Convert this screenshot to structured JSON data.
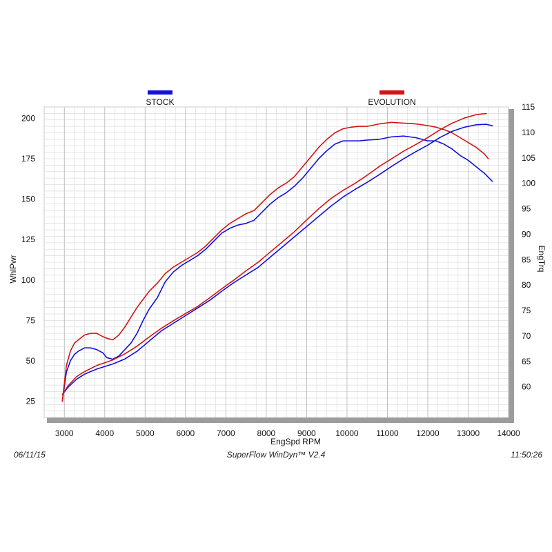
{
  "footer": {
    "date": "06/11/15",
    "software": "SuperFlow WinDyn™ V2.4",
    "time": "11:50:26"
  },
  "chart_data": {
    "type": "line",
    "xlabel": "EngSpd  RPM",
    "ylabel": "WhlPwr",
    "y2label": "EngTrq",
    "xlim": [
      2500,
      14000
    ],
    "ylim": [
      15,
      207
    ],
    "y2lim": [
      54,
      115
    ],
    "x_ticks": [
      3000,
      4000,
      5000,
      6000,
      7000,
      8000,
      9000,
      10000,
      11000,
      12000,
      13000,
      14000
    ],
    "y_ticks": [
      25,
      50,
      75,
      100,
      125,
      150,
      175,
      200
    ],
    "y2_ticks": [
      60,
      65,
      70,
      75,
      80,
      85,
      90,
      95,
      100,
      105,
      110,
      115
    ],
    "grid": true,
    "legend_position": "top",
    "colors": {
      "stock": "#1010dd",
      "evolution": "#d41414"
    },
    "series": [
      {
        "name": "STOCK",
        "key": "stock",
        "measure": "power",
        "axis": "left",
        "x": [
          2950,
          3050,
          3150,
          3250,
          3350,
          3500,
          3650,
          3800,
          3950,
          4050,
          4200,
          4350,
          4500,
          4650,
          4800,
          4950,
          5100,
          5300,
          5500,
          5700,
          5900,
          6100,
          6300,
          6500,
          6700,
          6900,
          7100,
          7300,
          7500,
          7700,
          7900,
          8100,
          8300,
          8500,
          8700,
          8900,
          9100,
          9300,
          9500,
          9700,
          9900,
          10100,
          10300,
          10500,
          10800,
          11100,
          11400,
          11700,
          12000,
          12200,
          12400,
          12600,
          12800,
          13000,
          13200,
          13400,
          13600
        ],
        "y": [
          25,
          43,
          50,
          54,
          56,
          58,
          58,
          57,
          55,
          52,
          51,
          53,
          57,
          61,
          67,
          75,
          82,
          89,
          99,
          105,
          109,
          112,
          115,
          119,
          124,
          129,
          132,
          134,
          135,
          137,
          142,
          147,
          151,
          154,
          158,
          163,
          169,
          175,
          180,
          184,
          186,
          186,
          186,
          186.5,
          187,
          188.5,
          189,
          188,
          186,
          186,
          184,
          181,
          177,
          174,
          170,
          166,
          161
        ]
      },
      {
        "name": "EVOLUTION",
        "key": "evolution",
        "measure": "power",
        "axis": "left",
        "x": [
          2950,
          3050,
          3150,
          3250,
          3350,
          3500,
          3650,
          3800,
          3950,
          4050,
          4200,
          4350,
          4500,
          4650,
          4800,
          4950,
          5100,
          5300,
          5500,
          5700,
          5900,
          6100,
          6300,
          6500,
          6700,
          6900,
          7100,
          7300,
          7500,
          7700,
          7900,
          8100,
          8300,
          8500,
          8700,
          8900,
          9100,
          9300,
          9500,
          9700,
          9900,
          10100,
          10300,
          10500,
          10800,
          11100,
          11400,
          11700,
          12000,
          12200,
          12400,
          12600,
          12800,
          13000,
          13200,
          13400,
          13500
        ],
        "y": [
          25,
          47,
          56,
          61,
          63,
          66,
          67,
          67,
          65,
          64,
          63,
          66,
          71,
          77,
          83,
          88,
          93,
          98,
          104,
          108,
          111,
          114,
          117,
          121,
          126,
          131,
          135,
          138,
          141,
          143,
          148,
          153,
          157,
          160,
          164,
          170,
          176,
          182,
          187,
          191,
          193.5,
          194.5,
          195,
          195,
          196.5,
          197.5,
          197,
          196.5,
          195.5,
          194.5,
          193,
          191,
          188,
          185,
          182,
          178,
          175
        ]
      },
      {
        "name": "STOCK",
        "key": "stock",
        "measure": "torque",
        "axis": "right",
        "x": [
          2950,
          3100,
          3300,
          3500,
          3800,
          4200,
          4500,
          4800,
          5100,
          5400,
          5700,
          6000,
          6300,
          6600,
          6900,
          7200,
          7500,
          7800,
          8100,
          8400,
          8700,
          9000,
          9300,
          9600,
          9900,
          10200,
          10500,
          10800,
          11100,
          11400,
          11700,
          12000,
          12300,
          12600,
          12900,
          13200,
          13450,
          13600
        ],
        "y": [
          58.5,
          60,
          61.5,
          62.5,
          63.5,
          64.5,
          65.5,
          67,
          69,
          71,
          72.5,
          74,
          75.5,
          77,
          78.8,
          80.5,
          82,
          83.5,
          85.5,
          87.5,
          89.5,
          91.5,
          93.5,
          95.5,
          97.3,
          98.8,
          100.2,
          101.7,
          103.3,
          104.8,
          106.2,
          107.5,
          109,
          110.2,
          111,
          111.5,
          111.6,
          111.3
        ]
      },
      {
        "name": "EVOLUTION",
        "key": "evolution",
        "measure": "torque",
        "axis": "right",
        "x": [
          2950,
          3100,
          3300,
          3500,
          3800,
          4200,
          4500,
          4800,
          5100,
          5400,
          5700,
          6000,
          6300,
          6600,
          6900,
          7200,
          7500,
          7800,
          8100,
          8400,
          8700,
          9000,
          9300,
          9600,
          9900,
          10200,
          10500,
          10800,
          11100,
          11400,
          11700,
          12000,
          12300,
          12600,
          12900,
          13200,
          13450
        ],
        "y": [
          58.5,
          60.3,
          62,
          63,
          64.2,
          65.3,
          66.5,
          68,
          69.8,
          71.5,
          73,
          74.4,
          75.8,
          77.5,
          79.3,
          81,
          82.8,
          84.5,
          86.5,
          88.5,
          90.5,
          92.8,
          95,
          97,
          98.6,
          100,
          101.6,
          103.3,
          104.8,
          106.3,
          107.6,
          109,
          110.5,
          111.8,
          112.8,
          113.5,
          113.7
        ]
      }
    ]
  }
}
